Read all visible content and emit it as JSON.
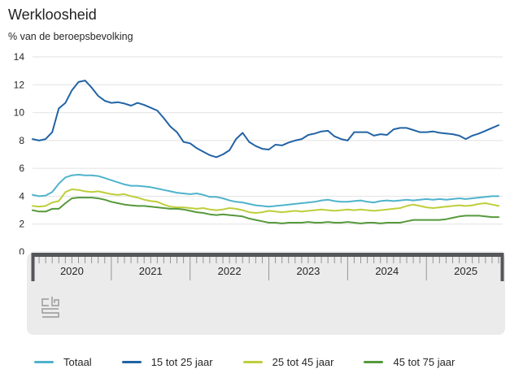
{
  "title": "Werkloosheid",
  "subtitle": "% van de beroepsbevolking",
  "chart_data": {
    "type": "line",
    "title": "Werkloosheid",
    "ylabel": "% van de beroepsbevolking",
    "xlabel": "",
    "x_unit": "month",
    "x_start": "2020-01",
    "x_end": "2025-12",
    "year_labels": [
      "2020",
      "2021",
      "2022",
      "2023",
      "2024",
      "2025"
    ],
    "ylim": [
      0,
      14
    ],
    "yticks": [
      0,
      2,
      4,
      6,
      8,
      10,
      12,
      14
    ],
    "grid": "horizontal",
    "legend_position": "bottom",
    "series": [
      {
        "name": "Totaal",
        "color": "#4fb3cc",
        "values": [
          4.1,
          4.0,
          4.05,
          4.3,
          4.9,
          5.35,
          5.5,
          5.55,
          5.5,
          5.5,
          5.45,
          5.3,
          5.15,
          5.0,
          4.85,
          4.75,
          4.75,
          4.7,
          4.65,
          4.55,
          4.45,
          4.35,
          4.25,
          4.2,
          4.15,
          4.2,
          4.1,
          3.95,
          3.95,
          3.85,
          3.7,
          3.6,
          3.55,
          3.45,
          3.35,
          3.3,
          3.25,
          3.3,
          3.35,
          3.4,
          3.45,
          3.5,
          3.55,
          3.6,
          3.7,
          3.75,
          3.65,
          3.6,
          3.6,
          3.65,
          3.7,
          3.6,
          3.55,
          3.65,
          3.7,
          3.65,
          3.7,
          3.75,
          3.7,
          3.75,
          3.8,
          3.75,
          3.8,
          3.75,
          3.8,
          3.85,
          3.8,
          3.85,
          3.9,
          3.95,
          4.0,
          4.0
        ]
      },
      {
        "name": "15 tot 25 jaar",
        "color": "#2163a5",
        "values": [
          8.1,
          8.0,
          8.1,
          8.6,
          10.3,
          10.7,
          11.6,
          12.2,
          12.3,
          11.8,
          11.2,
          10.85,
          10.7,
          10.75,
          10.65,
          10.5,
          10.7,
          10.55,
          10.35,
          10.15,
          9.6,
          9.0,
          8.6,
          7.9,
          7.8,
          7.45,
          7.2,
          6.95,
          6.8,
          7.0,
          7.3,
          8.1,
          8.55,
          7.9,
          7.6,
          7.4,
          7.35,
          7.7,
          7.65,
          7.85,
          8.0,
          8.1,
          8.4,
          8.5,
          8.65,
          8.7,
          8.3,
          8.1,
          8.0,
          8.6,
          8.6,
          8.6,
          8.35,
          8.45,
          8.4,
          8.8,
          8.9,
          8.9,
          8.75,
          8.6,
          8.6,
          8.65,
          8.55,
          8.5,
          8.45,
          8.35,
          8.1,
          8.35,
          8.5,
          8.7,
          8.9,
          9.1
        ]
      },
      {
        "name": "25 tot 45 jaar",
        "color": "#bfce3a",
        "values": [
          3.3,
          3.25,
          3.3,
          3.55,
          3.65,
          4.3,
          4.5,
          4.45,
          4.35,
          4.3,
          4.35,
          4.25,
          4.15,
          4.1,
          4.15,
          4.0,
          3.9,
          3.75,
          3.65,
          3.6,
          3.4,
          3.25,
          3.2,
          3.2,
          3.15,
          3.1,
          3.15,
          3.05,
          3.0,
          3.05,
          3.15,
          3.1,
          3.0,
          2.85,
          2.8,
          2.85,
          2.95,
          2.9,
          2.85,
          2.9,
          2.95,
          2.9,
          2.95,
          3.0,
          3.05,
          3.0,
          2.95,
          3.0,
          3.05,
          3.0,
          3.05,
          3.0,
          2.95,
          3.0,
          3.05,
          3.1,
          3.15,
          3.3,
          3.4,
          3.3,
          3.2,
          3.15,
          3.2,
          3.25,
          3.3,
          3.35,
          3.3,
          3.35,
          3.45,
          3.5,
          3.4,
          3.3
        ]
      },
      {
        "name": "45 tot 75 jaar",
        "color": "#56993c",
        "values": [
          3.0,
          2.9,
          2.9,
          3.1,
          3.1,
          3.5,
          3.85,
          3.9,
          3.9,
          3.9,
          3.85,
          3.75,
          3.6,
          3.5,
          3.4,
          3.35,
          3.3,
          3.3,
          3.25,
          3.2,
          3.15,
          3.1,
          3.1,
          3.05,
          2.95,
          2.85,
          2.8,
          2.7,
          2.65,
          2.7,
          2.65,
          2.6,
          2.55,
          2.4,
          2.3,
          2.2,
          2.1,
          2.1,
          2.05,
          2.1,
          2.1,
          2.1,
          2.15,
          2.1,
          2.1,
          2.15,
          2.1,
          2.1,
          2.15,
          2.1,
          2.05,
          2.1,
          2.1,
          2.05,
          2.1,
          2.1,
          2.1,
          2.2,
          2.3,
          2.3,
          2.3,
          2.3,
          2.3,
          2.35,
          2.45,
          2.55,
          2.6,
          2.6,
          2.6,
          2.55,
          2.5,
          2.5
        ]
      }
    ]
  },
  "footer": {
    "logo": "cbs-logo"
  },
  "colors": {
    "grid": "#e2e2e2",
    "axis_text": "#262626",
    "nav_panel": "#ebebeb",
    "nav_bar": "#55565a",
    "tick": "#969696"
  }
}
